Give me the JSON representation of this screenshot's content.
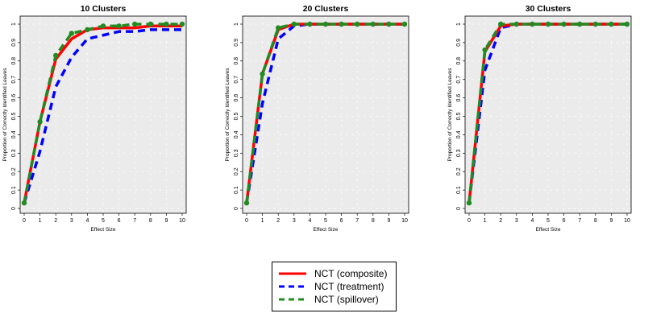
{
  "chart_data": [
    {
      "type": "line",
      "title": "10 Clusters",
      "xlabel": "Effect Size",
      "ylabel": "Proportion of Correctly Identified Leaves",
      "x": [
        0,
        1,
        2,
        3,
        4,
        5,
        6,
        7,
        8,
        9,
        10
      ],
      "xticks": [
        "0",
        "1",
        "2",
        "3",
        "4",
        "5",
        "6",
        "7",
        "8",
        "9",
        "10"
      ],
      "yticks": [
        "0",
        "0.1",
        "0.2",
        "0.3",
        "0.4",
        "0.5",
        "0.6",
        "0.7",
        "0.8",
        "0.9",
        "1"
      ],
      "xlim": [
        0,
        10
      ],
      "ylim": [
        0,
        1
      ],
      "series": [
        {
          "name": "NCT (composite)",
          "values": [
            0.03,
            0.47,
            0.81,
            0.92,
            0.97,
            0.98,
            0.98,
            0.98,
            0.99,
            0.99,
            0.99
          ]
        },
        {
          "name": "NCT (treatment)",
          "values": [
            0.03,
            0.31,
            0.66,
            0.82,
            0.92,
            0.94,
            0.96,
            0.96,
            0.97,
            0.97,
            0.97
          ]
        },
        {
          "name": "NCT (spillover)",
          "values": [
            0.03,
            0.47,
            0.83,
            0.95,
            0.97,
            0.99,
            0.99,
            1.0,
            1.0,
            1.0,
            1.0
          ]
        }
      ]
    },
    {
      "type": "line",
      "title": "20 Clusters",
      "xlabel": "Effect Size",
      "ylabel": "Proportion of Correctly Identified Leaves",
      "x": [
        0,
        1,
        2,
        3,
        4,
        5,
        6,
        7,
        8,
        9,
        10
      ],
      "xticks": [
        "0",
        "1",
        "2",
        "3",
        "4",
        "5",
        "6",
        "7",
        "8",
        "9",
        "10"
      ],
      "yticks": [
        "0",
        "0.1",
        "0.2",
        "0.3",
        "0.4",
        "0.5",
        "0.6",
        "0.7",
        "0.8",
        "0.9",
        "1"
      ],
      "xlim": [
        0,
        10
      ],
      "ylim": [
        0,
        1
      ],
      "series": [
        {
          "name": "NCT (composite)",
          "values": [
            0.03,
            0.73,
            0.97,
            1.0,
            1.0,
            1.0,
            1.0,
            1.0,
            1.0,
            1.0,
            1.0
          ]
        },
        {
          "name": "NCT (treatment)",
          "values": [
            0.03,
            0.57,
            0.92,
            0.99,
            1.0,
            1.0,
            1.0,
            1.0,
            1.0,
            1.0,
            1.0
          ]
        },
        {
          "name": "NCT (spillover)",
          "values": [
            0.03,
            0.73,
            0.98,
            1.0,
            1.0,
            1.0,
            1.0,
            1.0,
            1.0,
            1.0,
            1.0
          ]
        }
      ]
    },
    {
      "type": "line",
      "title": "30 Clusters",
      "xlabel": "Effect Size",
      "ylabel": "Proportion of Correctly Identified Leaves",
      "x": [
        0,
        1,
        2,
        3,
        4,
        5,
        6,
        7,
        8,
        9,
        10
      ],
      "xticks": [
        "0",
        "1",
        "2",
        "3",
        "4",
        "5",
        "6",
        "7",
        "8",
        "9",
        "10"
      ],
      "yticks": [
        "0",
        "0.1",
        "0.2",
        "0.3",
        "0.4",
        "0.5",
        "0.6",
        "0.7",
        "0.8",
        "0.9",
        "1"
      ],
      "xlim": [
        0,
        10
      ],
      "ylim": [
        0,
        1
      ],
      "series": [
        {
          "name": "NCT (composite)",
          "values": [
            0.03,
            0.85,
            0.99,
            1.0,
            1.0,
            1.0,
            1.0,
            1.0,
            1.0,
            1.0,
            1.0
          ]
        },
        {
          "name": "NCT (treatment)",
          "values": [
            0.03,
            0.75,
            0.98,
            1.0,
            1.0,
            1.0,
            1.0,
            1.0,
            1.0,
            1.0,
            1.0
          ]
        },
        {
          "name": "NCT (spillover)",
          "values": [
            0.03,
            0.86,
            1.0,
            1.0,
            1.0,
            1.0,
            1.0,
            1.0,
            1.0,
            1.0,
            1.0
          ]
        }
      ]
    }
  ],
  "legend": {
    "placement": "bottom-center",
    "items": [
      {
        "label": "NCT (composite)",
        "color": "#ff0000",
        "style": "solid"
      },
      {
        "label": "NCT (treatment)",
        "color": "#0000ff",
        "style": "dashed"
      },
      {
        "label": "NCT (spillover)",
        "color": "#228b22",
        "style": "dashed"
      }
    ]
  },
  "colors": {
    "composite": "#ff0000",
    "treatment": "#0000ff",
    "spillover": "#228b22",
    "panel_background": "#ebebeb",
    "grid": "#ffffff"
  },
  "grid": true
}
